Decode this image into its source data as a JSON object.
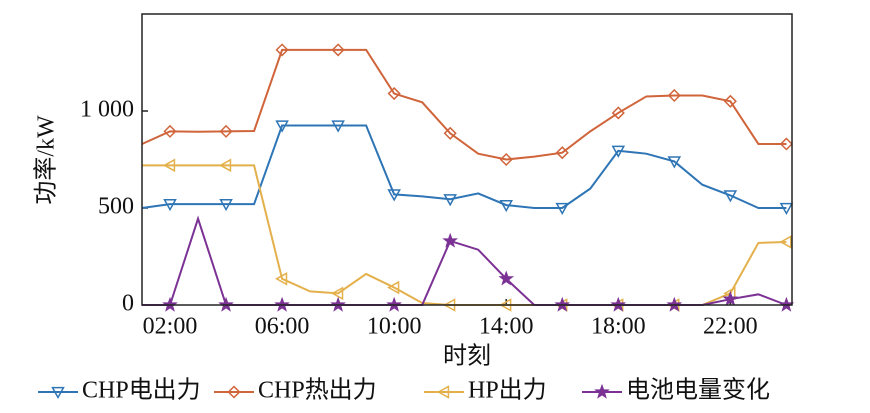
{
  "chart_data": {
    "type": "line",
    "y_label": "功率/kW",
    "x_label": "时刻",
    "x": [
      1,
      2,
      3,
      4,
      5,
      6,
      7,
      8,
      9,
      10,
      11,
      12,
      13,
      14,
      15,
      16,
      17,
      18,
      19,
      20,
      21,
      22,
      23,
      24
    ],
    "xlim": [
      1,
      24.2
    ],
    "xticks": [
      {
        "value": 2,
        "label": "02:00"
      },
      {
        "value": 6,
        "label": "06:00"
      },
      {
        "value": 10,
        "label": "10:00"
      },
      {
        "value": 14,
        "label": "14:00"
      },
      {
        "value": 18,
        "label": "18:00"
      },
      {
        "value": 22,
        "label": "22:00"
      }
    ],
    "ylim": [
      0,
      1500
    ],
    "yticks": [
      0,
      500,
      {
        "value": 1000,
        "label": "1 000"
      }
    ],
    "series": [
      {
        "name": "CHP电出力",
        "color": "#2e75b6",
        "marker": "triangle-down",
        "values": [
          500,
          520,
          520,
          520,
          520,
          925,
          925,
          925,
          925,
          570,
          560,
          545,
          575,
          515,
          500,
          500,
          600,
          795,
          780,
          740,
          620,
          565,
          500,
          500
        ]
      },
      {
        "name": "CHP热出力",
        "color": "#d0643a",
        "marker": "diamond",
        "values": [
          830,
          895,
          893,
          895,
          897,
          1315,
          1315,
          1315,
          1315,
          1090,
          1045,
          885,
          780,
          750,
          765,
          785,
          895,
          990,
          1075,
          1080,
          1080,
          1050,
          830,
          830
        ]
      },
      {
        "name": "HP出力",
        "color": "#e3b04b",
        "marker": "triangle-left",
        "values": [
          720,
          720,
          720,
          720,
          720,
          135,
          70,
          60,
          160,
          90,
          10,
          0,
          0,
          0,
          0,
          0,
          0,
          0,
          0,
          0,
          0,
          60,
          320,
          325
        ]
      },
      {
        "name": "电池电量变化",
        "color": "#7b3294",
        "marker": "star",
        "values": [
          0,
          0,
          445,
          0,
          0,
          0,
          0,
          0,
          0,
          0,
          0,
          330,
          285,
          135,
          0,
          0,
          0,
          0,
          0,
          0,
          0,
          30,
          55,
          0
        ]
      }
    ]
  }
}
